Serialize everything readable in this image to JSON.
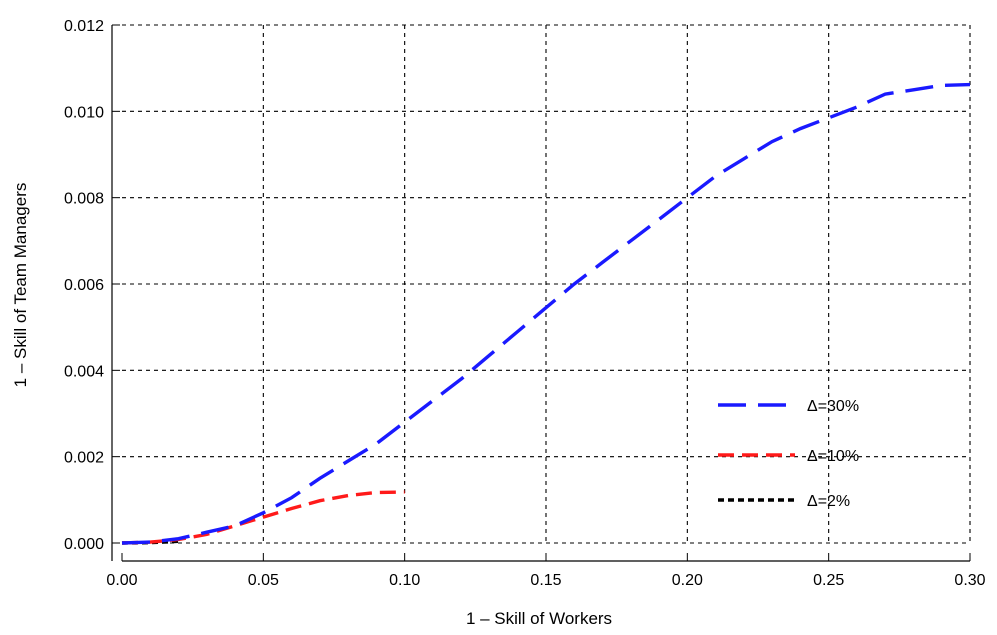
{
  "chart_data": {
    "type": "line",
    "title": "",
    "xlabel": "1 – Skill of Workers",
    "ylabel": "1 – Skill of Team Managers",
    "xlim": [
      0.0,
      0.3
    ],
    "ylim": [
      0.0,
      0.012
    ],
    "xticks": [
      0.0,
      0.05,
      0.1,
      0.15,
      0.2,
      0.25,
      0.3
    ],
    "xtick_labels": [
      "0.00",
      "0.05",
      "0.10",
      "0.15",
      "0.20",
      "0.25",
      "0.30"
    ],
    "yticks": [
      0.0,
      0.002,
      0.004,
      0.006,
      0.008,
      0.01,
      0.012
    ],
    "ytick_labels": [
      "0.000",
      "0.002",
      "0.004",
      "0.006",
      "0.008",
      "0.010",
      "0.012"
    ],
    "grid": true,
    "legend_position": "right",
    "series": [
      {
        "name": "Δ=30%",
        "color": "#1a1aff",
        "dash": "long",
        "x": [
          0.0,
          0.01,
          0.02,
          0.03,
          0.04,
          0.05,
          0.06,
          0.07,
          0.08,
          0.09,
          0.1,
          0.11,
          0.12,
          0.13,
          0.14,
          0.15,
          0.16,
          0.17,
          0.18,
          0.19,
          0.2,
          0.21,
          0.22,
          0.23,
          0.24,
          0.25,
          0.26,
          0.27,
          0.28,
          0.29,
          0.3
        ],
        "y": [
          0.0,
          2e-05,
          0.0001,
          0.00025,
          0.0004,
          0.0007,
          0.00105,
          0.0015,
          0.0019,
          0.0023,
          0.0028,
          0.0033,
          0.0038,
          0.00435,
          0.0049,
          0.00545,
          0.006,
          0.0065,
          0.007,
          0.0075,
          0.008,
          0.0085,
          0.0089,
          0.0093,
          0.0096,
          0.00985,
          0.0101,
          0.0104,
          0.0105,
          0.0106,
          0.01062
        ]
      },
      {
        "name": "Δ=10%",
        "color": "#ff1a1a",
        "dash": "medium",
        "x": [
          0.0,
          0.01,
          0.02,
          0.03,
          0.04,
          0.05,
          0.06,
          0.07,
          0.08,
          0.09,
          0.1
        ],
        "y": [
          0.0,
          2e-05,
          8e-05,
          0.0002,
          0.0004,
          0.0006,
          0.0008,
          0.00098,
          0.0011,
          0.00117,
          0.00118
        ]
      },
      {
        "name": "Δ=2%",
        "color": "#000000",
        "dash": "short",
        "x": [
          0.0,
          0.005,
          0.01,
          0.015,
          0.02
        ],
        "y": [
          0.0,
          3e-06,
          1e-05,
          2e-05,
          4e-05
        ]
      }
    ]
  }
}
